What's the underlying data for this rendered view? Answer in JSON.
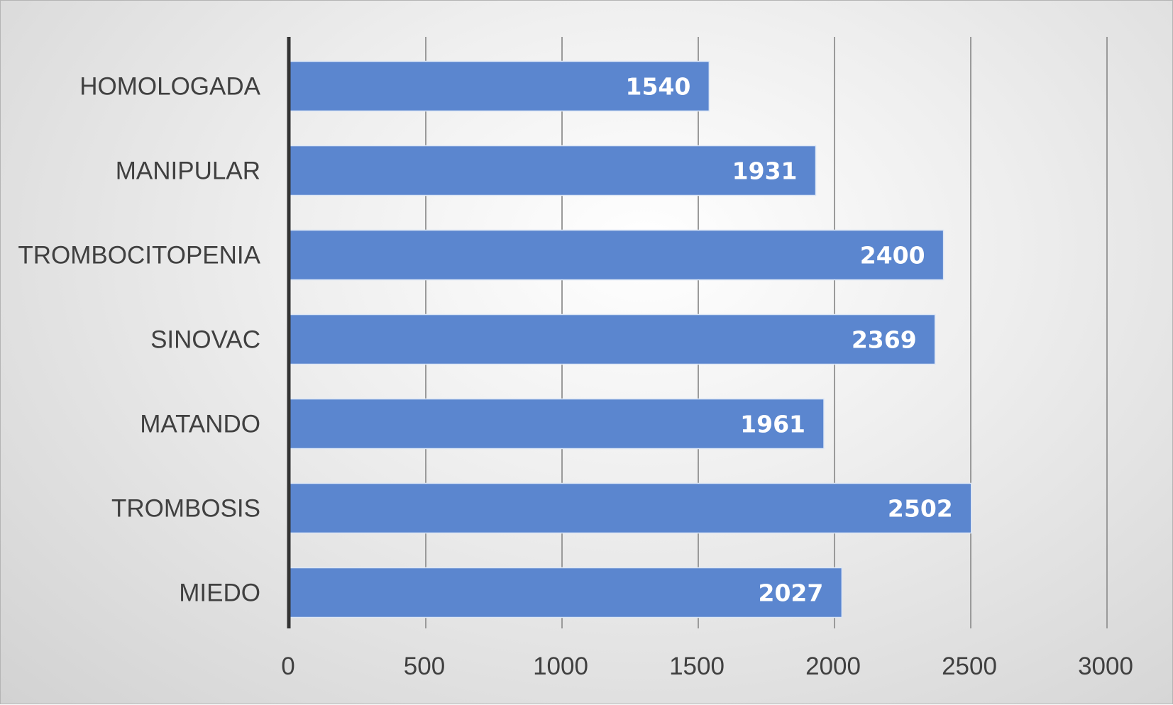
{
  "chart_data": {
    "type": "bar",
    "orientation": "horizontal",
    "title": "",
    "xlabel": "",
    "ylabel": "",
    "categories": [
      "HOMOLOGADA",
      "MANIPULAR",
      "TROMBOCITOPENIA",
      "SINOVAC",
      "MATANDO",
      "TROMBOSIS",
      "MIEDO"
    ],
    "values": [
      1540,
      1931,
      2400,
      2369,
      1961,
      2502,
      2027
    ],
    "xlim": [
      0,
      3000
    ],
    "xticks": [
      0,
      500,
      1000,
      1500,
      2000,
      2500,
      3000
    ],
    "tick_labels": [
      "0",
      "500",
      "1000",
      "1500",
      "2000",
      "2500",
      "3000"
    ],
    "data_labels": [
      "1540",
      "1931",
      "2400",
      "2369",
      "1961",
      "2502",
      "2027"
    ],
    "grid": true,
    "legend": "none",
    "bar_color": "#5b86cf",
    "bar_edge_color": "#dce6f5",
    "axis_color": "#333333",
    "grid_color": "#9a9a9a"
  }
}
